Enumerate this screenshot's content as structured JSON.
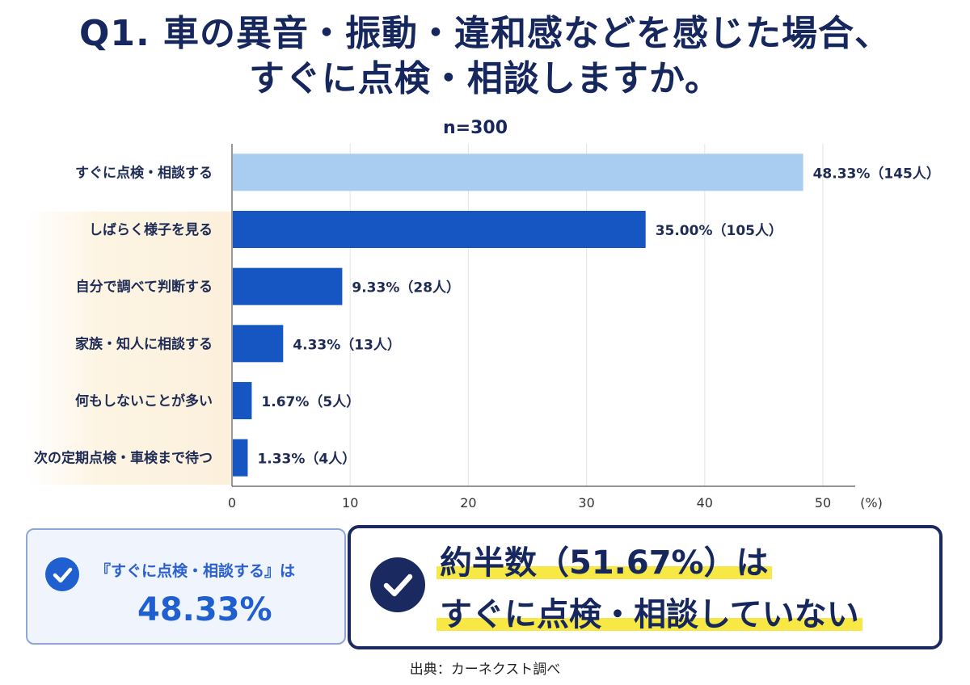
{
  "title_line1": "Q1. 車の異音・振動・違和感などを感じた場合、",
  "title_line2": "すぐに点検・相談しますか。",
  "n_label": "n=300",
  "chart_data": {
    "type": "bar",
    "orientation": "horizontal",
    "categories": [
      "すぐに点検・相談する",
      "しばらく様子を見る",
      "自分で調べて判断する",
      "家族・知人に相談する",
      "何もしないことが多い",
      "次の定期点検・車検まで待つ"
    ],
    "values": [
      48.33,
      35.0,
      9.33,
      4.33,
      1.67,
      1.33
    ],
    "value_labels": [
      "48.33%（145人）",
      "35.00%（105人）",
      "9.33%（28人）",
      "4.33%（13人）",
      "1.67%（5人）",
      "1.33%（4人）"
    ],
    "bar_colors": [
      "#a9cdf0",
      "#1556c2",
      "#1556c2",
      "#1556c2",
      "#1556c2",
      "#1556c2"
    ],
    "xlim": [
      0,
      53
    ],
    "xticks": [
      0,
      10,
      20,
      30,
      40,
      50
    ],
    "x_unit": "(%)",
    "grid": true
  },
  "left_box": {
    "subtitle": "『すぐに点検・相談する』は",
    "value": "48.33%"
  },
  "right_box": {
    "line1": "約半数（51.67%）は",
    "line2": "すぐに点検・相談していない"
  },
  "source": "出典：カーネクスト調べ",
  "colors": {
    "title": "#16275e",
    "bar_highlight": "#a9cdf0",
    "bar_main": "#1556c2",
    "marker_yellow": "#f7e845",
    "navy": "#1a2a60"
  }
}
